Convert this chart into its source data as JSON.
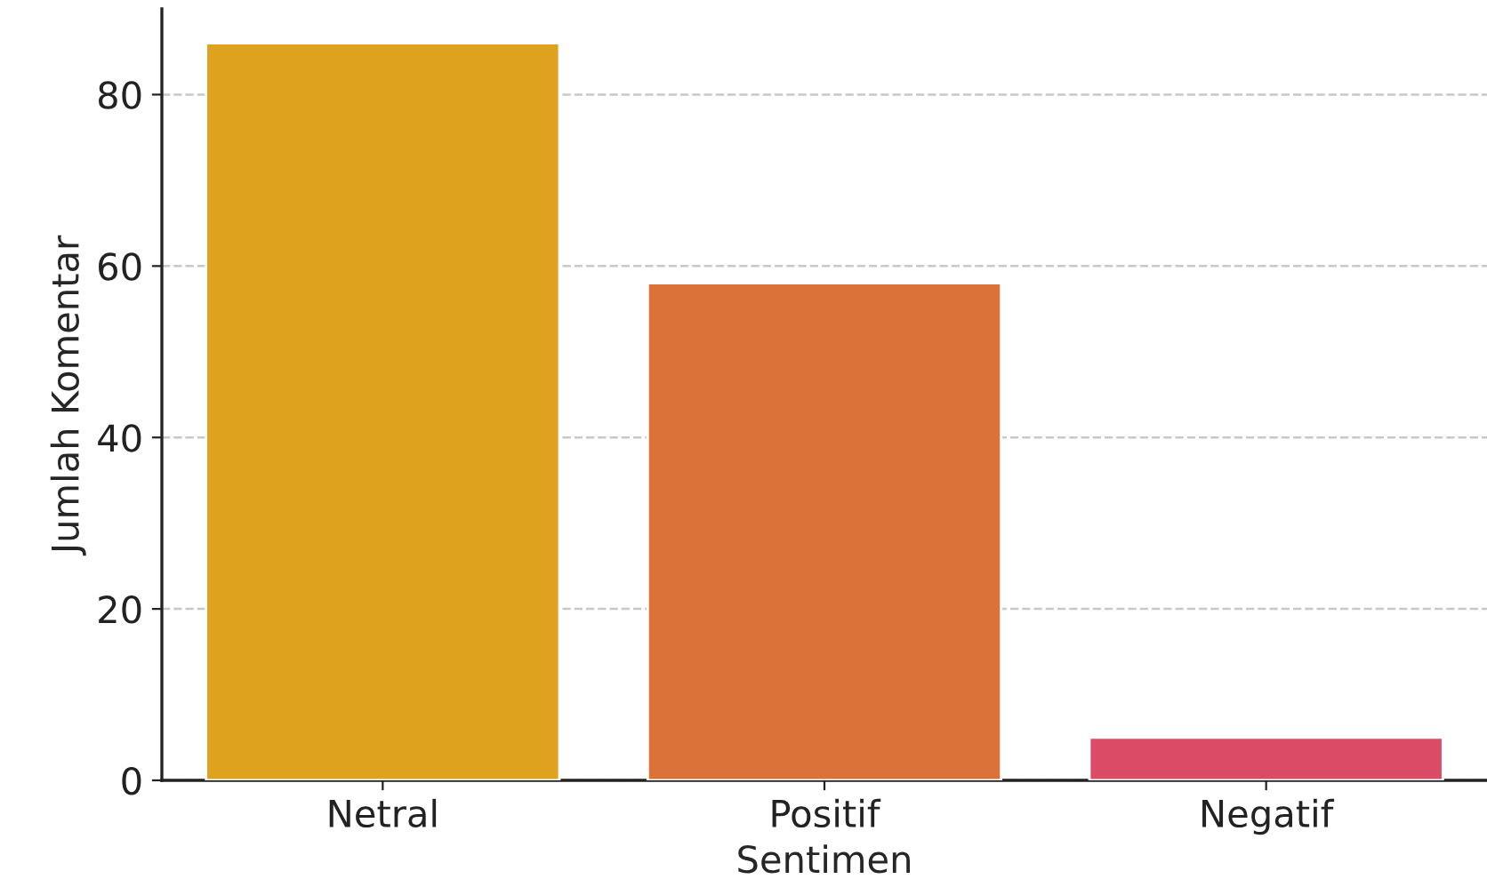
{
  "chart_data": {
    "type": "bar",
    "xlabel": "Sentimen",
    "ylabel": "Jumlah Komentar",
    "categories": [
      "Netral",
      "Positif",
      "Negatif"
    ],
    "values": [
      86,
      58,
      5
    ],
    "colors": [
      "#dfa21f",
      "#da723a",
      "#dc4b65"
    ],
    "ylim": [
      0,
      90
    ],
    "yticks": [
      0,
      20,
      40,
      60,
      80
    ],
    "grid": "y"
  }
}
